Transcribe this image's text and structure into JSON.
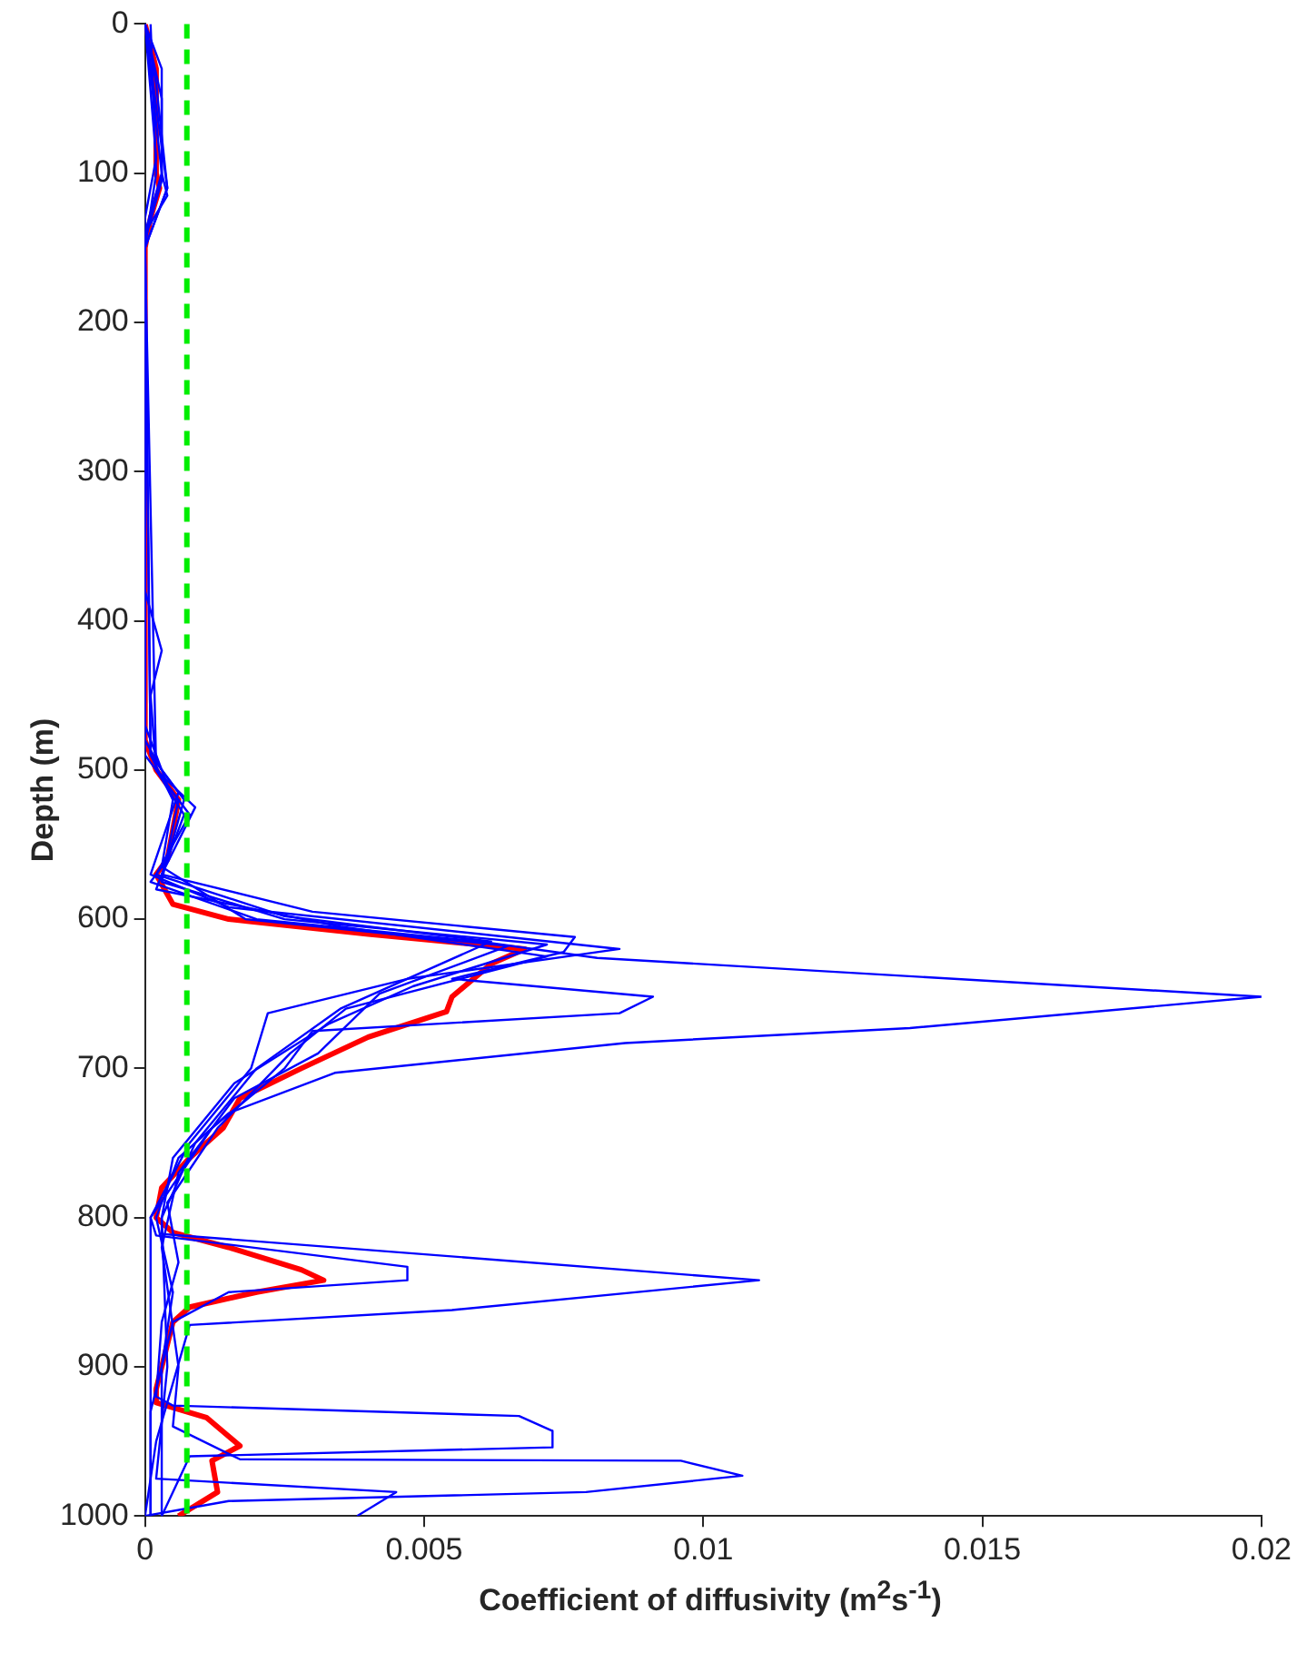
{
  "chart_data": {
    "type": "line",
    "xlabel": "Coefficient of diffusivity (m$^{2}$s$^{-1}$)",
    "ylabel": "Depth (m)",
    "xlim": [
      0,
      0.02
    ],
    "xticks": [
      0,
      0.005,
      0.01,
      0.015,
      0.02
    ],
    "ylim": [
      1000,
      0
    ],
    "yticks": [
      0,
      100,
      200,
      300,
      400,
      500,
      600,
      700,
      800,
      900,
      1000
    ],
    "grid": false,
    "marker": "none",
    "line_style": "solid",
    "ref_lines": [
      {
        "axis": "x",
        "value": 0.00075,
        "color": "#00ee00",
        "line_style": "dashed"
      }
    ],
    "series": [
      {
        "color": "#0000ff",
        "x": [
          0,
          0.0003,
          0.0003,
          0.0004,
          0,
          0,
          0.0003,
          0.0007,
          0.0004,
          0.0001,
          0.002,
          0.006,
          0.0081,
          0.02,
          0.0137,
          0.0086,
          0.0034,
          0.0015,
          0.0006,
          0.0002,
          0.0005,
          0.0003,
          0.0003
        ],
        "values": [
          0,
          30,
          100,
          115,
          140,
          480,
          500,
          520,
          560,
          575,
          600,
          615,
          626,
          652,
          673,
          683,
          703,
          730,
          760,
          800,
          850,
          900,
          1000
        ]
      },
      {
        "color": "#0000ff",
        "x": [
          0,
          0.0002,
          0.0004,
          0,
          0,
          0.0003,
          0.0001,
          0.0002,
          0.0009,
          0.0003,
          0.003,
          0.0077,
          0.0075,
          0.0055,
          0.0091,
          0.0085,
          0.003,
          0.0025,
          0.0012,
          0.0001,
          0.0001
        ],
        "values": [
          0,
          40,
          110,
          150,
          380,
          420,
          450,
          500,
          525,
          570,
          595,
          612,
          622,
          640,
          652,
          663,
          675,
          700,
          740,
          800,
          1000
        ]
      },
      {
        "color": "#0000ff",
        "x": [
          0,
          0.0003,
          0.0003,
          0,
          0,
          0.0004,
          0.0008,
          0.0002,
          0.0025,
          0.0062,
          0.0035,
          0.002,
          0.0009,
          0.0003,
          0.0003,
          0.011,
          0.0055,
          0.0008,
          0.0002,
          0
        ],
        "values": [
          0,
          50,
          105,
          145,
          470,
          510,
          530,
          570,
          598,
          615,
          660,
          700,
          750,
          800,
          811,
          842,
          862,
          872,
          950,
          1000
        ]
      },
      {
        "color": "#0000ff",
        "x": [
          0.0001,
          0.0002,
          0,
          0.0001,
          0.0005,
          0.0003,
          0.0018,
          0.0065,
          0.0042,
          0.0031,
          0.0016,
          0.0006,
          0.0003,
          0.0006,
          0.0005,
          0.0017,
          0.0096,
          0.0107,
          0.0079,
          0.0015,
          0
        ],
        "values": [
          0,
          100,
          150,
          490,
          520,
          565,
          600,
          618,
          650,
          690,
          720,
          770,
          820,
          900,
          940,
          962,
          963,
          973,
          984,
          990,
          1000
        ]
      },
      {
        "color": "#0000ff",
        "x": [
          0,
          0.0004,
          0,
          0.0002,
          0.0007,
          0.0002,
          0.0035,
          0.0072,
          0.0036,
          0.0026,
          0.0013,
          0.0004,
          0.0006,
          0.0003,
          0.0002,
          0.0005,
          0.0067,
          0.0073,
          0.0073,
          0.0008,
          0.0003
        ],
        "values": [
          0,
          110,
          150,
          500,
          530,
          580,
          605,
          625,
          660,
          690,
          740,
          790,
          830,
          870,
          920,
          926,
          933,
          943,
          954,
          960,
          1000
        ]
      },
      {
        "color": "#0000ff",
        "x": [
          0,
          0.0003,
          0,
          0.0001,
          0.0006,
          0.0001,
          0.0015,
          0.0085,
          0.0047,
          0.0022,
          0.0019,
          0.0008,
          0.0001,
          0.0002,
          0.0047,
          0.0047,
          0.0015,
          0.0005,
          0.0001,
          0.0001
        ],
        "values": [
          0,
          100,
          140,
          490,
          515,
          570,
          592,
          620,
          640,
          663,
          700,
          750,
          800,
          812,
          833,
          842,
          850,
          870,
          930,
          1000
        ]
      },
      {
        "color": "#0000ff",
        "x": [
          0,
          0.0002,
          0,
          0,
          0.0006,
          0.0003,
          0.0025,
          0.0072,
          0.0048,
          0.0033,
          0.0016,
          0.0005,
          0.0003,
          0.0004,
          0.0002,
          0.0045,
          0.0038
        ],
        "values": [
          0,
          90,
          130,
          490,
          520,
          575,
          600,
          617,
          645,
          670,
          710,
          760,
          800,
          900,
          975,
          984,
          1000
        ]
      },
      {
        "color": "#ff0000",
        "x": [
          0,
          0.0002,
          0.0002,
          0.00026,
          0.0001,
          0,
          0,
          0.0002,
          0.0006,
          0.0004,
          0.0002,
          0.0005,
          0.0015,
          0.004,
          0.0068,
          0.0062,
          0.0055,
          0.0054,
          0.004,
          0.0028,
          0.0017,
          0.0014,
          0.0008,
          0.0003,
          0.0002,
          0.0005,
          0.0015,
          0.0028,
          0.0032,
          0.002,
          0.0008,
          0.0005,
          0.0003,
          0.0002,
          0.0002,
          0.0011,
          0.0017,
          0.0012,
          0.0013,
          0.0006
        ],
        "values": [
          0,
          30,
          100,
          110,
          130,
          150,
          480,
          500,
          520,
          560,
          570,
          590,
          600,
          610,
          620,
          630,
          652,
          662,
          679,
          700,
          720,
          740,
          760,
          780,
          800,
          810,
          820,
          835,
          842,
          850,
          860,
          870,
          900,
          915,
          924,
          934,
          953,
          963,
          984,
          1000
        ]
      }
    ]
  }
}
